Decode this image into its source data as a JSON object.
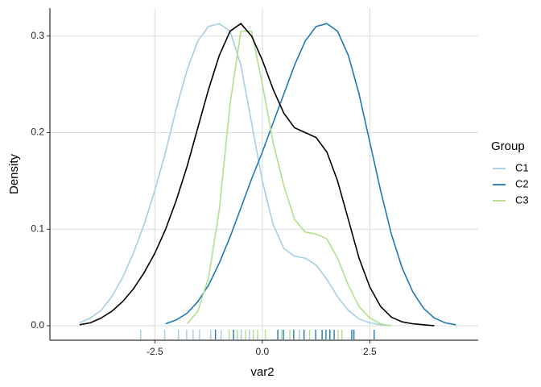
{
  "chart_data": {
    "type": "density",
    "xlabel": "var2",
    "ylabel": "Density",
    "legend_title": "Group",
    "legend": "right",
    "xlim": [
      -4.94,
      5.02
    ],
    "ylim": [
      -0.015,
      0.329
    ],
    "xticks": [
      -2.5,
      {
        "value": 0,
        "label": "0.0"
      },
      2.5
    ],
    "yticks": [
      {
        "value": 0,
        "label": "0.0"
      },
      0.1,
      0.2,
      0.3
    ],
    "grid": true,
    "x": [
      -4.25,
      -4,
      -3.75,
      -3.5,
      -3.25,
      -3,
      -2.75,
      -2.5,
      -2.25,
      -2,
      -1.75,
      -1.5,
      -1.25,
      -1,
      -0.75,
      -0.5,
      -0.25,
      0,
      0.25,
      0.5,
      0.75,
      1,
      1.25,
      1.5,
      1.75,
      2,
      2.25,
      2.5,
      2.75,
      3,
      3.25,
      3.5,
      3.75,
      4,
      4.25,
      4.5
    ],
    "series": [
      {
        "name": "C1",
        "color": "#a6cee3",
        "values": [
          0.003,
          0.008,
          0.016,
          0.03,
          0.05,
          0.075,
          0.105,
          0.14,
          0.18,
          0.225,
          0.265,
          0.295,
          0.31,
          0.313,
          0.305,
          0.27,
          0.21,
          0.15,
          0.105,
          0.08,
          0.072,
          0.07,
          0.063,
          0.048,
          0.03,
          0.016,
          0.007,
          0.003,
          0.001,
          0,
          null,
          null,
          null,
          null,
          null,
          null
        ],
        "rug": [
          -2.83,
          -2.27,
          -1.95,
          -1.76,
          -1.61,
          -1.46,
          -1.2,
          -0.96,
          -0.49,
          -0.3,
          0.86,
          1.57
        ]
      },
      {
        "name": "C2",
        "color": "#1f78b4",
        "values": [
          null,
          null,
          null,
          null,
          null,
          null,
          null,
          null,
          0.002,
          0.006,
          0.013,
          0.025,
          0.042,
          0.065,
          0.092,
          0.122,
          0.152,
          0.18,
          0.21,
          0.24,
          0.27,
          0.295,
          0.31,
          0.313,
          0.305,
          0.28,
          0.24,
          0.19,
          0.14,
          0.095,
          0.06,
          0.035,
          0.018,
          0.008,
          0.003,
          0.001
        ],
        "rug": [
          -1.09,
          -0.67,
          0.36,
          0.49,
          0.73,
          0.97,
          1.24,
          1.39,
          1.48,
          1.57,
          1.67,
          2.08,
          2.13,
          2.6
        ]
      },
      {
        "name": "C3",
        "color": "#b2df8a",
        "values": [
          null,
          null,
          null,
          null,
          null,
          null,
          null,
          null,
          null,
          null,
          0.002,
          0.015,
          0.05,
          0.12,
          0.23,
          0.305,
          0.305,
          0.25,
          0.19,
          0.145,
          0.11,
          0.097,
          0.095,
          0.09,
          0.07,
          0.042,
          0.02,
          0.008,
          0.002,
          0,
          null,
          null,
          null,
          null,
          null,
          null
        ],
        "rug": [
          -0.77,
          -0.58,
          -0.39,
          -0.21,
          -0.11,
          0.07,
          0.45,
          0.64,
          1.1,
          1.76,
          1.85
        ]
      },
      {
        "color": "#000000",
        "values": [
          0.001,
          0.003,
          0.008,
          0.015,
          0.025,
          0.038,
          0.055,
          0.075,
          0.1,
          0.13,
          0.165,
          0.205,
          0.245,
          0.28,
          0.305,
          0.313,
          0.3,
          0.275,
          0.245,
          0.22,
          0.205,
          0.2,
          0.195,
          0.18,
          0.15,
          0.11,
          0.07,
          0.04,
          0.02,
          0.009,
          0.004,
          0.002,
          0.001,
          0,
          null,
          null
        ]
      }
    ]
  }
}
